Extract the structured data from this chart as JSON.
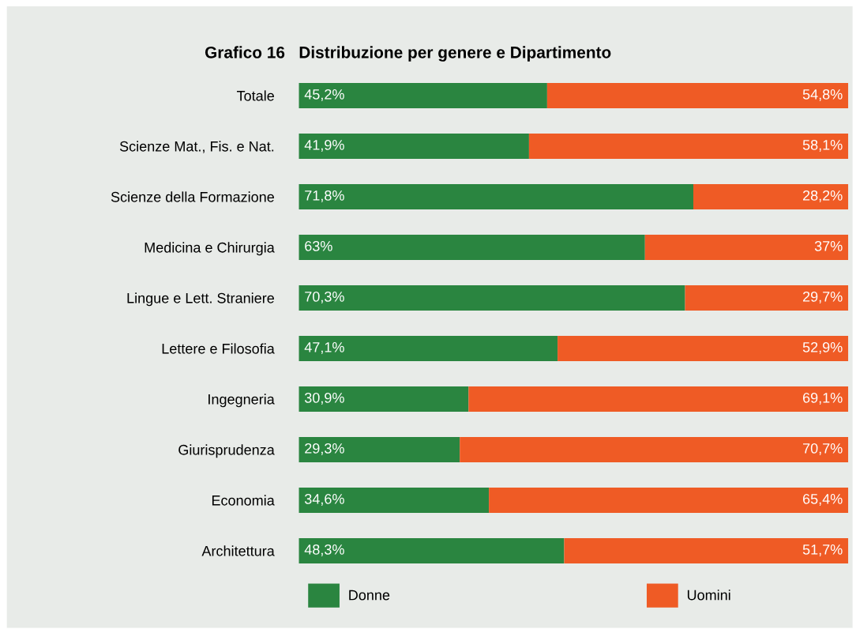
{
  "chart_data": {
    "type": "bar",
    "orientation": "horizontal",
    "stacked": true,
    "title": "Grafico 16",
    "subtitle": "Distribuzione per genere e Dipartimento",
    "categories": [
      "Totale",
      "Scienze Mat., Fis. e Nat.",
      "Scienze della Formazione",
      "Medicina e Chirurgia",
      "Lingue e Lett. Straniere",
      "Lettere e Filosofia",
      "Ingegneria",
      "Giurisprudenza",
      "Economia",
      "Architettura"
    ],
    "series": [
      {
        "name": "Donne",
        "color": "#2a8540",
        "values": [
          45.2,
          41.9,
          71.8,
          63,
          70.3,
          47.1,
          30.9,
          29.3,
          34.6,
          48.3
        ],
        "value_labels": [
          "45,2%",
          "41,9%",
          "71,8%",
          "63%",
          "70,3%",
          "47,1%",
          "30,9%",
          "29,3%",
          "34,6%",
          "48,3%"
        ]
      },
      {
        "name": "Uomini",
        "color": "#ef5b25",
        "values": [
          54.8,
          58.1,
          28.2,
          37,
          29.7,
          52.9,
          69.1,
          70.7,
          65.4,
          51.7
        ],
        "value_labels": [
          "54,8%",
          "58,1%",
          "28,2%",
          "37%",
          "29,7%",
          "52,9%",
          "69,1%",
          "70,7%",
          "65,4%",
          "51,7%"
        ]
      }
    ],
    "xlim": [
      0,
      100
    ],
    "tick_labels": "y",
    "grid": false,
    "legend": "bottom"
  }
}
